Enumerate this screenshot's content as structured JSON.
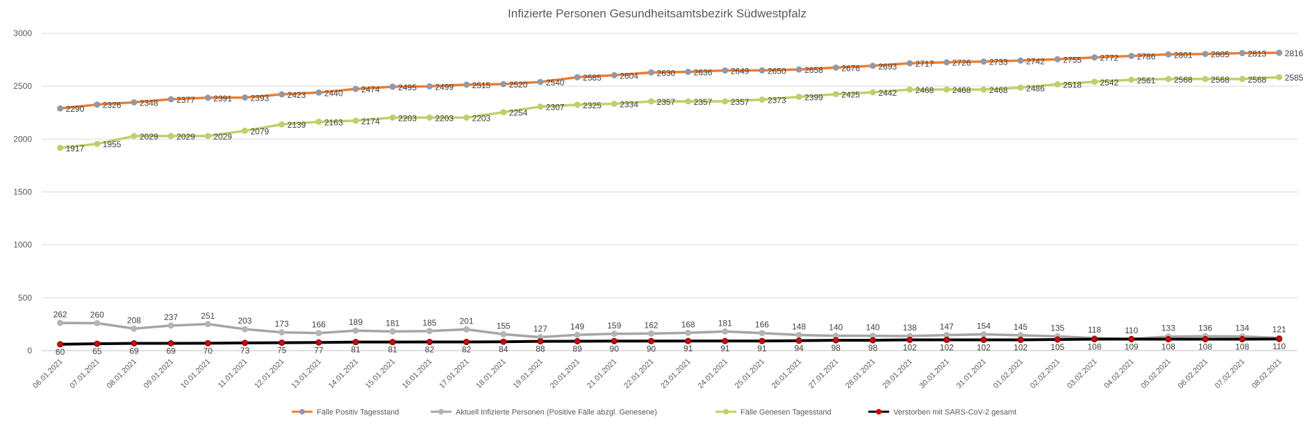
{
  "chart_data": {
    "type": "line",
    "title": "Infizierte Personen Gesundheitsamtsbezirk Südwestpfalz",
    "xlabel": "",
    "ylabel": "",
    "ylim": [
      0,
      3000
    ],
    "yticks": [
      0,
      500,
      1000,
      1500,
      2000,
      2500,
      3000
    ],
    "grid": true,
    "legend_position": "bottom",
    "categories": [
      "06.01.2021",
      "07.01.2021",
      "08.01.2021",
      "09.01.2021",
      "10.01.2021",
      "11.01.2021",
      "12.01.2021",
      "13.01.2021",
      "14.01.2021",
      "15.01.2021",
      "16.01.2021",
      "17.01.2021",
      "18.01.2021",
      "19.01.2021",
      "20.01.2021",
      "21.01.2021",
      "22.01.2021",
      "23.01.2021",
      "24.01.2021",
      "25.01.2021",
      "26.01.2021",
      "27.01.2021",
      "28.01.2021",
      "29.01.2021",
      "30.01.2021",
      "31.01.2021",
      "01.02.2021",
      "02.02.2021",
      "03.02.2021",
      "04.02.2021",
      "05.02.2021",
      "06.02.2021",
      "07.02.2021",
      "08.02.2021"
    ],
    "series": [
      {
        "name": "Fälle Positiv Tagesstand",
        "color": "#ED7D31",
        "marker": "#8E9AAB",
        "values": [
          2290,
          2326,
          2348,
          2377,
          2391,
          2393,
          2423,
          2440,
          2474,
          2495,
          2499,
          2515,
          2520,
          2540,
          2585,
          2604,
          2630,
          2636,
          2649,
          2650,
          2658,
          2676,
          2693,
          2717,
          2726,
          2733,
          2742,
          2755,
          2772,
          2786,
          2801,
          2805,
          2813,
          2816
        ]
      },
      {
        "name": "Aktuell Infizierte Personen (Positive Fälle abzgl. Genesene)",
        "color": "#A5A5A5",
        "marker": "#B4B4B4",
        "values": [
          262,
          260,
          208,
          237,
          251,
          203,
          173,
          166,
          189,
          181,
          185,
          201,
          155,
          127,
          149,
          159,
          162,
          168,
          181,
          166,
          148,
          140,
          140,
          138,
          147,
          154,
          145,
          135,
          118,
          110,
          133,
          136,
          134,
          121
        ]
      },
      {
        "name": "Fälle Genesen Tagesstand",
        "color": "#BFD06A",
        "marker": "#BFD06A",
        "values": [
          1917,
          1955,
          2029,
          2029,
          2029,
          2079,
          2139,
          2163,
          2174,
          2203,
          2203,
          2203,
          2254,
          2307,
          2325,
          2334,
          2357,
          2357,
          2357,
          2373,
          2399,
          2425,
          2442,
          2468,
          2468,
          2468,
          2486,
          2518,
          2542,
          2561,
          2568,
          2568,
          2568,
          2585
        ]
      },
      {
        "name": "Verstorben mit SARS-CoV-2 gesamt",
        "color": "#000000",
        "marker": "#E00000",
        "values": [
          60,
          65,
          69,
          69,
          70,
          73,
          75,
          77,
          81,
          81,
          82,
          82,
          84,
          88,
          89,
          90,
          90,
          91,
          91,
          91,
          94,
          98,
          98,
          102,
          102,
          102,
          102,
          105,
          108,
          109,
          108,
          108,
          108,
          110
        ]
      }
    ]
  }
}
